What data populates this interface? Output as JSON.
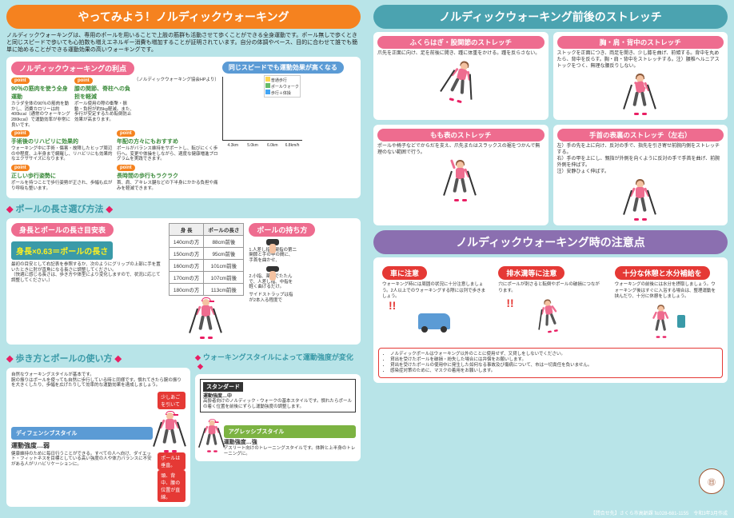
{
  "left": {
    "header": "やってみよう！ノルディックウォーキング",
    "intro": "ノルディックウォーキングは、専用のポールを用いることで上肢の筋群も活動させて歩くことができる全身運動です。ポール無しで歩くときと同じスピードで歩いても心拍数も増えエネルギー消費も増加することが証明されています。自分の体調やペース、目的に合わせて誰でも簡単に始めることができる運動効果の高いウォーキングです。",
    "benefits_title": "ノルディックウォーキングの利点",
    "chart_note": "（ノルディックウォーキング協会HPより）",
    "points": [
      {
        "title": "90％の筋肉を使う全身運動",
        "text": "カラダ全体の90％の筋肉を動かし、消費カロリーは約400kcal（通常のウォーキング280kcal）で運動効率が非常に良いです。"
      },
      {
        "title": "膝の関節、脊柱への負担を軽減",
        "text": "ポール使用の際の衝撃・振動・負担が約5kg軽減。また、歩行が安定するため転倒防止効果が高まります。"
      },
      {
        "title": "手術後のリハビリに効果的",
        "text": "ウォーキング中に手術・傷害・故障したヒップ周辺の中程度、上半身まで網羅し、リハビリにも効果的なエクササイズになります。"
      },
      {
        "title": "年配の方々にもおすすめ",
        "text": "ポールがバランス維持をサポートし、転びにくく歩行へ。変更や体操をしながら、適度な健康増進プログラムを実践できます。"
      },
      {
        "title": "正しい歩行姿勢に",
        "text": "ポールを持つことで歩行姿勢が正され、歩幅も広がり呼吸も整います。"
      },
      {
        "title": "長時間の歩行もラクラク",
        "text": "首、肩、アキレス腱などの下半身にかかる負担や痛みを軽減できます。"
      }
    ],
    "chart_title": "同じスピードでも運動効果が高くなる",
    "chart": {
      "type": "bar",
      "series_labels": [
        "普通歩行",
        "ポールウォーク",
        "歩行＋体操"
      ],
      "categories": [
        "4.3km",
        "5.0km",
        "6.0km",
        "6.8km/h"
      ],
      "values": [
        [
          90,
          100,
          110
        ],
        [
          95,
          110,
          122
        ],
        [
          110,
          128,
          138
        ],
        [
          130,
          142,
          155
        ]
      ],
      "colors": [
        "#ffd54f",
        "#66bb6a",
        "#42a5f5"
      ],
      "ylim": [
        80,
        160
      ]
    },
    "length_section": "ポールの長さ選び方法",
    "length_table_title": "身長とポールの長さ目安表",
    "length_formula": "身長×0.63＝ポールの長さ",
    "length_note": "最初の目安として右記表を参照するか、次のようにグリップの上部に手を置いたときに肘が直角になる長さに調整してください。\n（快適に感じる長さは、歩き方や体型により変化しますので、状況に応じて調整してください。）",
    "table": {
      "headers": [
        "身 長",
        "ポールの長さ"
      ],
      "rows": [
        [
          "140cmの方",
          "88cm前後"
        ],
        [
          "150cmの方",
          "95cm前後"
        ],
        [
          "160cmの方",
          "101cm前後"
        ],
        [
          "170cmの方",
          "107cm前後"
        ],
        [
          "180cmの方",
          "113cm前後"
        ]
      ]
    },
    "hold_title": "ポールの持ち方",
    "hold_steps": [
      "1.人差し指と親指の第二関節と手の甲の間に、手首を曲かせ、",
      "2.小指、薬指でたたんで、人差し指、中指を軽く曲げるだけ。",
      "サイドストラップは指が2本入る程度で"
    ],
    "walk_section": "歩き方とポールの使い方",
    "walk_intro": "自然なウォーキングスタイルが基本です。\n腕の振りはポールを使っても自然に歩行している時と同様です。慣れてきたら腕の振りを大きくしたり、歩幅を広げたりして効率的な運動効果を達成しましょう。",
    "callouts": [
      "少しあごを引いて",
      "肩をリラックスさせる・背筋を伸ばす・軽い前傾姿勢",
      "ポールは垂直。",
      "頭、背中、腰の位置が直線。"
    ],
    "style_section": "ウォーキングスタイルによって運動強度が変化",
    "standard_title": "スタンダード",
    "standard_label": "運動強度…中",
    "standard_text": "高齢者向けのノルディック・ウォークの基本スタイルです。慣れたらポールの着く位置を前後にずらし運動強度の調整します。",
    "defensive_title": "ディフェンシブスタイル",
    "defensive_label": "運動強度…弱",
    "defensive_text": "健康維持のために毎日行うことができる。すべての人へ向け、ダイエット・フィットネスを目標としている高い強度の人や体力バランスに不安がある人がリハビリケーションに。",
    "aggressive_title": "アグレッシブスタイル",
    "aggressive_label": "運動強度…強",
    "aggressive_text": "アスリート向けのトレーニングスタイルです。体幹と上半身のトレーニングに。"
  },
  "right": {
    "stretch_header": "ノルディックウォーキング前後のストレッチ",
    "stretches": [
      {
        "title": "ふくらはぎ・股関節のストレッチ",
        "text": "爪先を正面に向け、足を前後に開き、踵に体重をかける。踵を反らさない。"
      },
      {
        "title": "胸・肩・背中のストレッチ",
        "text": "ストックを正面につき、両足を開き、少し膝を曲げ、前傾する。背中を丸めたら、背中を反らす。胸・肩・背中をストレッチする。注）腰椎ヘルニアストックをつく、無理な腰反りしない。"
      },
      {
        "title": "もも表のストレッチ",
        "text": "ポールや椅子などでからだを支え、爪先またはスラックスの裾をつかんで無理のない範囲で行う。"
      },
      {
        "title": "手首の表裏のストレッチ（左右）",
        "text": "左）手の先を上に向け、反対の手で、指先を引き寄せ前腕内側をストレッチする。\n右）手の甲を上にし、親指が外側を向くように反対の手で手首を曲げ、前腕外側を伸ばす。\n注）安静ひょく伸ばす。"
      }
    ],
    "caution_header": "ノルディックウォーキング時の注意点",
    "cautions": [
      {
        "title": "車に注意",
        "text": "ウォーキング時には周囲の状況に十分注意しましょう。2人以上でのウォーキングする際には列で歩きましょう。"
      },
      {
        "title": "排水溝等に注意",
        "text": "穴にポールが刺さると転倒やポールの破損につながります。"
      },
      {
        "title": "十分な休憩と水分補給を",
        "text": "ウォーキングの前後には水分を摂取しましょう。ウォーキング後はすぐに入浴する場合は、整理運動を挟んだり、十分に休憩をしましょう。"
      }
    ],
    "notes_title": "",
    "notes": [
      "ノルディックポールはウォーキング以外のことに使用せず、又貸しをしないでください。",
      "貸出を受けたポールを破損・紛失した場合には弁償をお願いします。",
      "貸出を受けたポールの使用中に発生した如何なる事故及び傷病について、市は一切責任を負いません。",
      "感染症対策のために、マスクの着用をお願いします。"
    ],
    "seal": "㊐",
    "seal_label": "さくら市",
    "footer": "【問合せ先】さくら市高齢課 ℡028-681-1155　令和3年3月作成"
  }
}
